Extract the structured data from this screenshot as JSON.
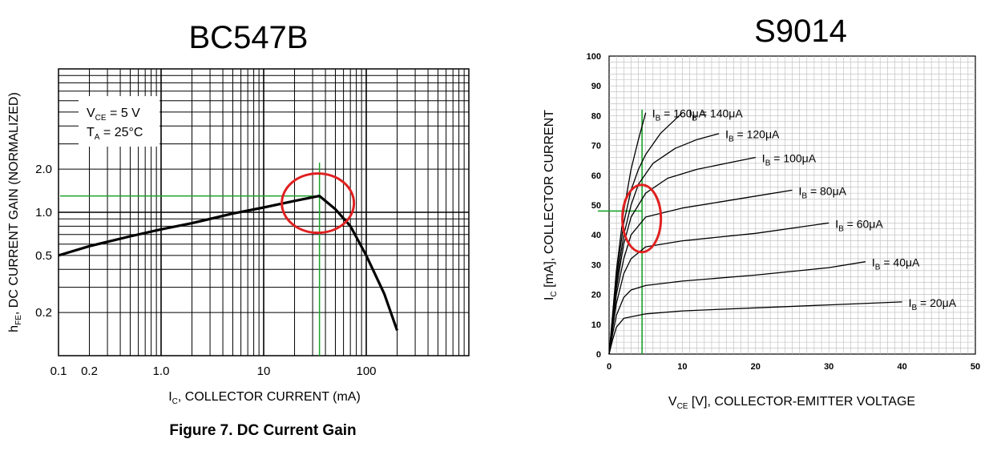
{
  "chart_data": [
    {
      "type": "line",
      "title": "BC547B",
      "caption": "Figure 7. DC Current Gain",
      "xlabel": "I_C, COLLECTOR CURRENT (mA)",
      "ylabel": "h_FE, DC CURRENT GAIN (NORMALIZED)",
      "x_scale": "log",
      "y_scale": "log",
      "xlim": [
        0.1,
        1000
      ],
      "ylim": [
        0.1,
        10
      ],
      "x_ticks": [
        "0.1",
        "0.2",
        "1.0",
        "10",
        "100"
      ],
      "y_ticks": [
        "0.2",
        "0.5",
        "1.0",
        "2.0"
      ],
      "conditions": {
        "vce": "V_CE = 5 V",
        "ta": "T_A = 25°C"
      },
      "grid": true,
      "series": [
        {
          "x": [
            0.1,
            0.2,
            0.5,
            1,
            2,
            5,
            10,
            20,
            35,
            50,
            70,
            100,
            150,
            200
          ],
          "y": [
            0.5,
            0.58,
            0.68,
            0.76,
            0.84,
            0.98,
            1.08,
            1.2,
            1.3,
            1.05,
            0.8,
            0.5,
            0.27,
            0.15
          ]
        }
      ],
      "markers": {
        "vline_x": 35,
        "hline_y": 1.3,
        "circle_x": 35,
        "circle_y": 1.3
      }
    },
    {
      "type": "line",
      "title": "S9014",
      "xlabel": "V_CE [V], COLLECTOR-EMITTER VOLTAGE",
      "ylabel": "I_C [mA], COLLECTOR CURRENT",
      "xlim": [
        0,
        50
      ],
      "ylim": [
        0,
        100
      ],
      "x_ticks": [
        0,
        10,
        20,
        30,
        40,
        50
      ],
      "y_ticks": [
        0,
        10,
        20,
        30,
        40,
        50,
        60,
        70,
        80,
        90,
        100
      ],
      "grid": true,
      "series": [
        {
          "name": "I_B = 20μA",
          "label": "= 20μA",
          "x": [
            0,
            0.5,
            1,
            2,
            5,
            10,
            20,
            30,
            40
          ],
          "y": [
            0,
            5,
            9,
            12,
            13.5,
            14.5,
            15.5,
            16.5,
            17.5
          ]
        },
        {
          "name": "I_B = 40μA",
          "label": "= 40μA",
          "x": [
            0,
            0.5,
            1,
            2,
            3,
            5,
            10,
            20,
            30,
            35
          ],
          "y": [
            0,
            7,
            13,
            19,
            21.5,
            23,
            24.5,
            26.5,
            29,
            31
          ]
        },
        {
          "name": "I_B = 60μA",
          "label": "= 60μA",
          "x": [
            0,
            0.5,
            1,
            2,
            3,
            5,
            10,
            20,
            30
          ],
          "y": [
            0,
            9,
            17,
            27,
            32,
            36,
            38,
            40.5,
            44
          ]
        },
        {
          "name": "I_B = 80μA",
          "label": "= 80μA",
          "x": [
            0,
            0.5,
            1,
            2,
            3,
            5,
            10,
            15,
            20,
            25
          ],
          "y": [
            0,
            10,
            20,
            32,
            40,
            46,
            49,
            51,
            53,
            55
          ]
        },
        {
          "name": "I_B = 100μA",
          "label": "= 100μA",
          "x": [
            0,
            0.5,
            1,
            2,
            3,
            5,
            8,
            12,
            16,
            20
          ],
          "y": [
            0,
            11,
            22,
            37,
            46,
            54,
            59,
            62,
            64,
            66
          ]
        },
        {
          "name": "I_B = 120μA",
          "label": "= 120μA",
          "x": [
            0,
            0.5,
            1,
            2,
            3,
            4,
            6,
            9,
            12,
            15
          ],
          "y": [
            0,
            12,
            24,
            40,
            50,
            57,
            64,
            69,
            72,
            74
          ]
        },
        {
          "name": "I_B = 140μA",
          "label": "= 140μA",
          "x": [
            0,
            0.5,
            1,
            2,
            3,
            4,
            5,
            7,
            10
          ],
          "y": [
            0,
            13,
            26,
            44,
            55,
            62,
            67,
            74,
            81
          ]
        },
        {
          "name": "I_B = 160μA",
          "label": "= 160μA",
          "x": [
            0,
            0.5,
            1,
            2,
            3,
            4,
            5
          ],
          "y": [
            0,
            14,
            28,
            48,
            62,
            72,
            81
          ]
        }
      ],
      "markers": {
        "vline_x": 4.5,
        "hline_y": 48,
        "ellipse_x": 4.5,
        "ellipse_y": 45.5
      }
    }
  ]
}
